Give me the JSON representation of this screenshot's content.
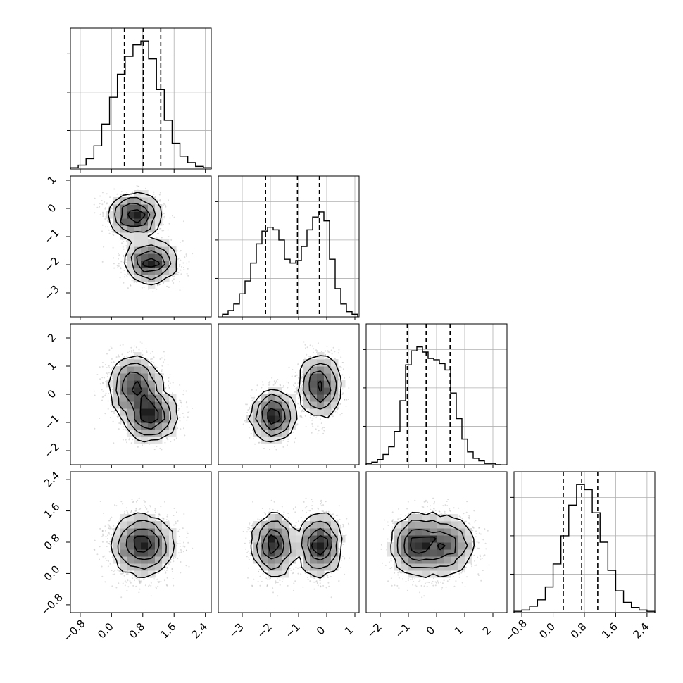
{
  "chart_data": {
    "type": "corner",
    "variables": [
      {
        "range": [
          -1.05,
          2.55
        ],
        "ticks": [
          -0.8,
          0.0,
          0.8,
          1.6,
          2.4
        ],
        "tick_labels": [
          "−0.8",
          "0.0",
          "0.8",
          "1.6",
          "2.4"
        ],
        "hist_x": [
          -0.95,
          -0.75,
          -0.55,
          -0.35,
          -0.15,
          0.05,
          0.25,
          0.45,
          0.65,
          0.85,
          1.05,
          1.25,
          1.45,
          1.65,
          1.85,
          2.05,
          2.25,
          2.45
        ],
        "hist_y": [
          0.01,
          0.03,
          0.08,
          0.18,
          0.35,
          0.56,
          0.74,
          0.88,
          0.97,
          1.0,
          0.86,
          0.62,
          0.38,
          0.2,
          0.1,
          0.05,
          0.02,
          0.01
        ],
        "quantiles": [
          0.33,
          0.81,
          1.26
        ]
      },
      {
        "range": [
          -3.85,
          1.15
        ],
        "ticks": [
          -3,
          -2,
          -1,
          0,
          1
        ],
        "tick_labels": [
          "−3",
          "−2",
          "−1",
          "0",
          "1"
        ],
        "hist_x": [
          -3.6,
          -3.4,
          -3.2,
          -3.0,
          -2.8,
          -2.6,
          -2.4,
          -2.2,
          -2.0,
          -1.8,
          -1.6,
          -1.4,
          -1.2,
          -1.0,
          -0.8,
          -0.6,
          -0.4,
          -0.2,
          0.0,
          0.2,
          0.4,
          0.6,
          0.8,
          1.0
        ],
        "hist_y": [
          0.02,
          0.05,
          0.1,
          0.18,
          0.28,
          0.42,
          0.57,
          0.67,
          0.7,
          0.68,
          0.6,
          0.45,
          0.42,
          0.44,
          0.55,
          0.68,
          0.78,
          0.82,
          0.75,
          0.45,
          0.22,
          0.1,
          0.04,
          0.02
        ],
        "quantiles": [
          -2.17,
          -1.04,
          -0.26
        ]
      },
      {
        "range": [
          -2.5,
          2.5
        ],
        "ticks": [
          -2,
          -1,
          0,
          1,
          2
        ],
        "tick_labels": [
          "−2",
          "−1",
          "0",
          "1",
          "2"
        ],
        "hist_x": [
          -2.4,
          -2.2,
          -2.0,
          -1.8,
          -1.6,
          -1.4,
          -1.2,
          -1.0,
          -0.8,
          -0.6,
          -0.4,
          -0.2,
          0.0,
          0.2,
          0.4,
          0.6,
          0.8,
          1.0,
          1.2,
          1.4,
          1.6,
          1.8,
          2.0,
          2.2
        ],
        "hist_y": [
          0.01,
          0.02,
          0.04,
          0.08,
          0.14,
          0.26,
          0.5,
          0.78,
          0.89,
          0.92,
          0.88,
          0.83,
          0.82,
          0.79,
          0.74,
          0.56,
          0.36,
          0.2,
          0.1,
          0.05,
          0.03,
          0.01,
          0.01,
          0.0
        ],
        "quantiles": [
          -1.04,
          -0.37,
          0.48
        ]
      },
      {
        "range": [
          -1.0,
          2.6
        ],
        "ticks": [
          -0.8,
          0.0,
          0.8,
          1.6,
          2.4
        ],
        "tick_labels": [
          "−0.8",
          "0.0",
          "0.8",
          "1.6",
          "2.4"
        ],
        "hist_x": [
          -0.9,
          -0.7,
          -0.5,
          -0.3,
          -0.1,
          0.1,
          0.3,
          0.5,
          0.7,
          0.9,
          1.1,
          1.3,
          1.5,
          1.7,
          1.9,
          2.1,
          2.3,
          2.5
        ],
        "hist_y": [
          0.01,
          0.02,
          0.05,
          0.1,
          0.2,
          0.38,
          0.6,
          0.84,
          1.0,
          0.96,
          0.78,
          0.55,
          0.33,
          0.17,
          0.08,
          0.04,
          0.02,
          0.01
        ],
        "quantiles": [
          0.26,
          0.73,
          1.14
        ]
      }
    ],
    "histogram_ylim": [
      0,
      1.1
    ],
    "grid": true,
    "quantile_linestyle": "dashed"
  }
}
